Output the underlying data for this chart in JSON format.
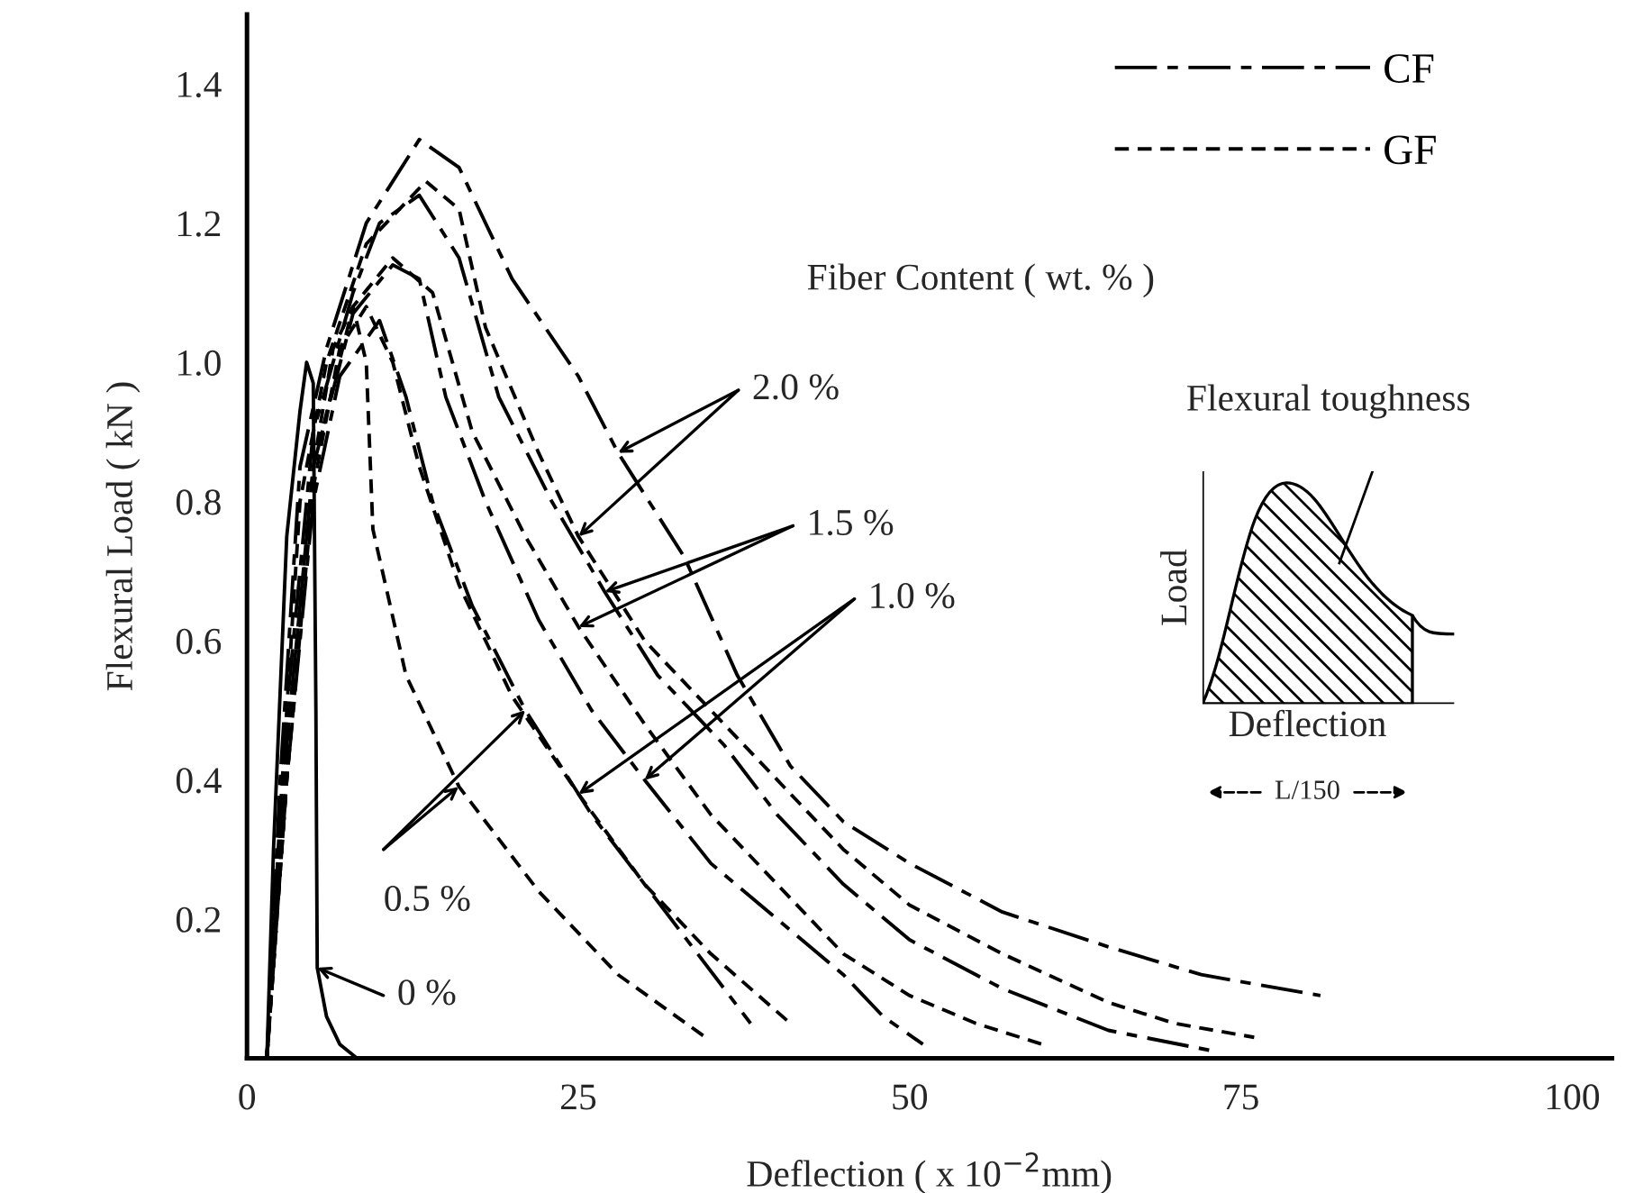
{
  "chart_data": {
    "type": "line",
    "xlabel": "Deflection ( x 10$^{−2}$mm)",
    "ylabel": "Flexural Load ( kN )",
    "xlim": [
      0,
      103
    ],
    "ylim": [
      0,
      1.5
    ],
    "xticks": [
      0,
      25,
      50,
      75,
      100
    ],
    "yticks": [
      {
        "value": 0.2,
        "label": "0.2"
      },
      {
        "value": 0.4,
        "label": "0.4"
      },
      {
        "value": 0.6,
        "label": "0.6"
      },
      {
        "value": 0.8,
        "label": "0.8"
      },
      {
        "value": 1.0,
        "label": "1.0"
      },
      {
        "value": 1.2,
        "label": "1.2"
      },
      {
        "value": 1.4,
        "label": "1.4"
      }
    ],
    "grid": false,
    "legend": "top right",
    "series": [
      {
        "color": "#000000",
        "line_style": "solid",
        "x": [
          1.5,
          2,
          3,
          4,
          4.5,
          5,
          5.2,
          5.3,
          6,
          7,
          8.3
        ],
        "values": [
          0,
          0.3,
          0.75,
          0.93,
          1.0,
          0.97,
          0.5,
          0.13,
          0.06,
          0.02,
          0
        ]
      },
      {
        "name": "CF",
        "color": "#000000",
        "line_style": "dashed",
        "x": [
          1.5,
          2.5,
          4,
          6,
          9,
          13,
          16,
          20,
          25,
          28,
          33,
          37,
          41,
          45,
          50,
          57,
          65,
          72,
          81
        ],
        "values": [
          0,
          0.4,
          0.85,
          1.02,
          1.2,
          1.32,
          1.28,
          1.12,
          0.98,
          0.87,
          0.72,
          0.55,
          0.42,
          0.34,
          0.28,
          0.21,
          0.16,
          0.12,
          0.09
        ]
      },
      {
        "name": "GF",
        "color": "#000000",
        "line_style": "dotted",
        "x": [
          1.5,
          2.5,
          4,
          6,
          9,
          13.5,
          16,
          18,
          22,
          25,
          30,
          35,
          40,
          45,
          50,
          57,
          65,
          70,
          76
        ],
        "values": [
          0,
          0.35,
          0.8,
          1.0,
          1.17,
          1.26,
          1.22,
          1.05,
          0.87,
          0.75,
          0.6,
          0.5,
          0.4,
          0.3,
          0.22,
          0.15,
          0.08,
          0.05,
          0.03
        ]
      },
      {
        "color": "#000000",
        "line_style": "dashed",
        "x": [
          1.5,
          3,
          5,
          8,
          10,
          13,
          16,
          19,
          23,
          27,
          31,
          36,
          40,
          45,
          50,
          57,
          65,
          73
        ],
        "values": [
          0,
          0.5,
          0.9,
          1.1,
          1.2,
          1.24,
          1.15,
          0.95,
          0.8,
          0.67,
          0.55,
          0.45,
          0.35,
          0.25,
          0.17,
          0.1,
          0.04,
          0.01
        ]
      },
      {
        "color": "#000000",
        "line_style": "dotted",
        "x": [
          1.5,
          3,
          5,
          8,
          11,
          14,
          17,
          21,
          25,
          30,
          35,
          40,
          45,
          50,
          55,
          60
        ],
        "values": [
          0,
          0.45,
          0.85,
          1.08,
          1.15,
          1.1,
          0.9,
          0.75,
          0.62,
          0.48,
          0.35,
          0.25,
          0.15,
          0.09,
          0.05,
          0.02
        ]
      },
      {
        "color": "#000000",
        "line_style": "dashed",
        "x": [
          1.5,
          3,
          5,
          8,
          11,
          13,
          15,
          18,
          22,
          26,
          30,
          35,
          40,
          45,
          48,
          51
        ],
        "values": [
          0,
          0.45,
          0.85,
          1.07,
          1.14,
          1.12,
          0.95,
          0.8,
          0.63,
          0.5,
          0.4,
          0.28,
          0.2,
          0.12,
          0.06,
          0.02
        ]
      },
      {
        "color": "#000000",
        "line_style": "dotted",
        "x": [
          1.5,
          3,
          5,
          7,
          9,
          11,
          13,
          16,
          20,
          25,
          30,
          35,
          41
        ],
        "values": [
          0,
          0.4,
          0.82,
          1.02,
          1.08,
          1.0,
          0.85,
          0.68,
          0.52,
          0.38,
          0.25,
          0.15,
          0.05
        ]
      },
      {
        "color": "#000000",
        "line_style": "dashed",
        "x": [
          1.5,
          3,
          5,
          7,
          10,
          12,
          14,
          17,
          21,
          26,
          30,
          34,
          38
        ],
        "values": [
          0,
          0.4,
          0.8,
          0.98,
          1.06,
          0.95,
          0.8,
          0.65,
          0.5,
          0.35,
          0.25,
          0.15,
          0.05
        ]
      },
      {
        "color": "#000000",
        "line_style": "dotted",
        "x": [
          1.5,
          3,
          5,
          6.5,
          8,
          9,
          9.5,
          12,
          16,
          22,
          28,
          34.6
        ],
        "values": [
          0,
          0.4,
          0.85,
          1.02,
          1.08,
          1.0,
          0.76,
          0.55,
          0.39,
          0.24,
          0.12,
          0.03
        ]
      }
    ],
    "annotations": [
      "Fiber Content ( wt. % )",
      {
        "text": "2.0 %",
        "x": 28,
        "y": 0.87
      },
      {
        "text": "1.5 %",
        "x": 27,
        "y": 0.67
      },
      {
        "text": "1.0 %",
        "x": 30,
        "y": 0.4
      },
      {
        "text": "0.5 %",
        "x": 21,
        "y": 0.5
      },
      {
        "text": "0 %",
        "x": 5.3,
        "y": 0.13
      },
      "Flexural toughness",
      "Load",
      "Deflection",
      "L/150"
    ]
  }
}
